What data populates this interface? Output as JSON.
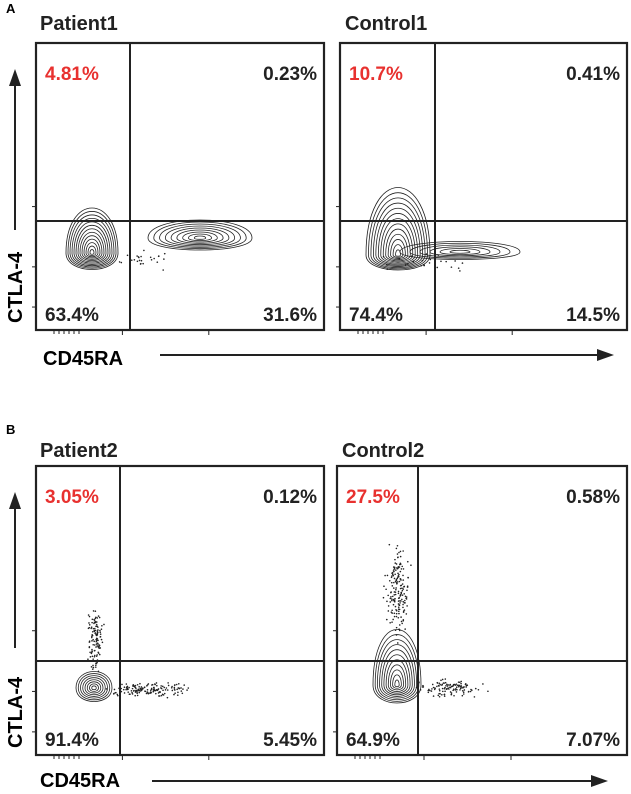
{
  "figure": {
    "panel_letters": [
      "A",
      "B"
    ],
    "x_axis_label": "CD45RA",
    "y_axis_label": "CTLA-4"
  },
  "colors": {
    "highlight": "#e8312f",
    "ink": "#222222"
  },
  "chart_data": [
    {
      "type": "contour",
      "panel": "A",
      "title": "Patient1",
      "xlabel": "CD45RA",
      "ylabel": "CTLA-4",
      "quadrants": {
        "upper_left": "4.81%",
        "upper_right": "0.23%",
        "lower_left": "63.4%",
        "lower_right": "31.6%"
      },
      "highlight": "upper_left"
    },
    {
      "type": "contour",
      "panel": "A",
      "title": "Control1",
      "xlabel": "CD45RA",
      "ylabel": "CTLA-4",
      "quadrants": {
        "upper_left": "10.7%",
        "upper_right": "0.41%",
        "lower_left": "74.4%",
        "lower_right": "14.5%"
      },
      "highlight": "upper_left"
    },
    {
      "type": "contour",
      "panel": "B",
      "title": "Patient2",
      "xlabel": "CD45RA",
      "ylabel": "CTLA-4",
      "quadrants": {
        "upper_left": "3.05%",
        "upper_right": "0.12%",
        "lower_left": "91.4%",
        "lower_right": "5.45%"
      },
      "highlight": "upper_left"
    },
    {
      "type": "contour",
      "panel": "B",
      "title": "Control2",
      "xlabel": "CD45RA",
      "ylabel": "CTLA-4",
      "quadrants": {
        "upper_left": "27.5%",
        "upper_right": "0.58%",
        "lower_left": "64.9%",
        "lower_right": "7.07%"
      },
      "highlight": "upper_left"
    }
  ]
}
